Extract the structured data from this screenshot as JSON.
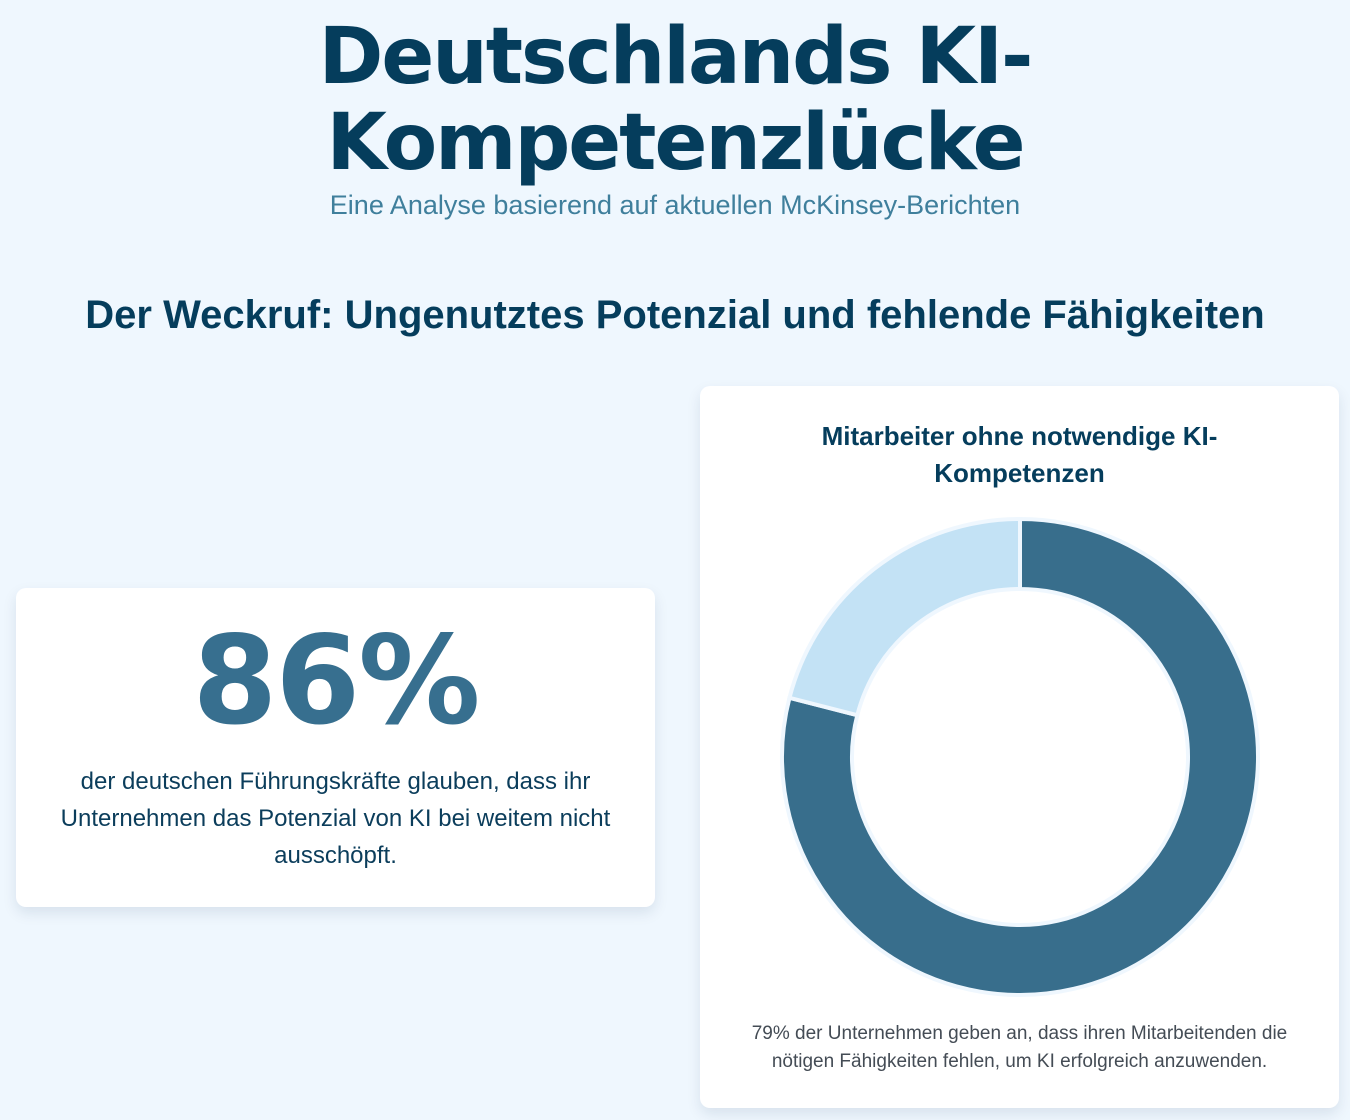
{
  "header": {
    "title": "Deutschlands KI-Kompetenzlücke",
    "subtitle": "Eine Analyse basierend auf aktuellen McKinsey-Berichten"
  },
  "section": {
    "heading": "Der Weckruf: Ungenutztes Potenzial und fehlende Fähigkeiten"
  },
  "stat_card": {
    "value": "86%",
    "text": "der deutschen Führungskräfte glauben, dass ihr Unternehmen das Potenzial von KI bei weitem nicht ausschöpft."
  },
  "chart_card": {
    "caption": "79% der Unternehmen geben an, dass ihren Mitarbeitenden die nötigen Fähigkeiten fehlen, um KI erfolgreich anzuwenden."
  },
  "chart_data": {
    "type": "pie",
    "variant": "donut",
    "title": "Mitarbeiter ohne notwendige KI-Kompetenzen",
    "values": [
      79,
      21
    ],
    "colors": [
      "#386e8c",
      "#c3e2f5"
    ],
    "legend": "none"
  }
}
